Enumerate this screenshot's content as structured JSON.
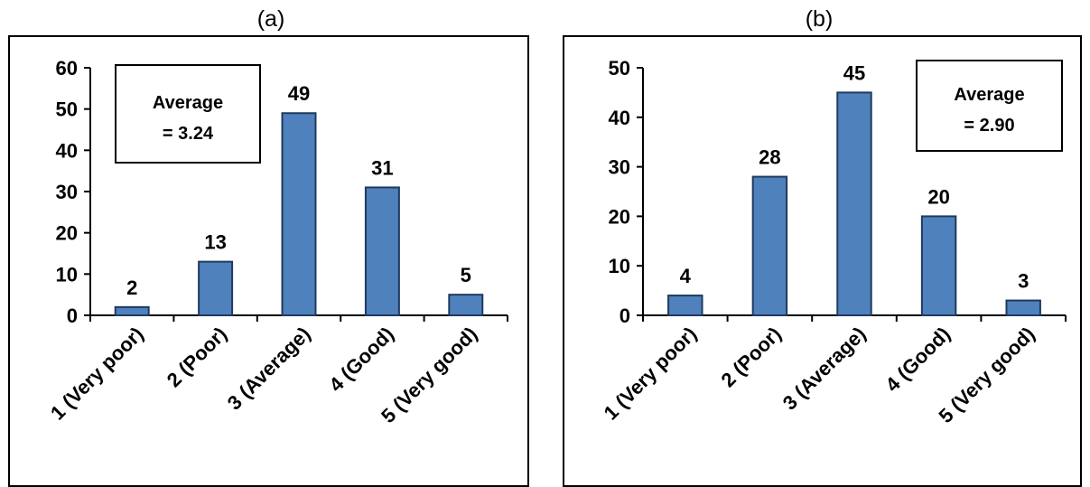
{
  "bar_color": "#4F81BD",
  "bar_edge_color": "#1F3A5F",
  "chart_data": [
    {
      "type": "bar",
      "panel_label": "(a)",
      "title": "",
      "xlabel": "",
      "ylabel": "",
      "categories": [
        "1 (Very poor)",
        "2 (Poor)",
        "3 (Average)",
        "4 (Good)",
        "5 (Very good)"
      ],
      "values": [
        2,
        13,
        49,
        31,
        5
      ],
      "data_labels": [
        "2",
        "13",
        "49",
        "31",
        "5"
      ],
      "ylim": [
        0,
        60
      ],
      "yticks": [
        0,
        10,
        20,
        30,
        40,
        50,
        60
      ],
      "grid": false,
      "annotation": [
        "Average",
        "= 3.24"
      ],
      "annotation_position": "top-left"
    },
    {
      "type": "bar",
      "panel_label": "(b)",
      "title": "",
      "xlabel": "",
      "ylabel": "",
      "categories": [
        "1 (Very poor)",
        "2 (Poor)",
        "3 (Average)",
        "4 (Good)",
        "5 (Very good)"
      ],
      "values": [
        4,
        28,
        45,
        20,
        3
      ],
      "data_labels": [
        "4",
        "28",
        "45",
        "20",
        "3"
      ],
      "ylim": [
        0,
        50
      ],
      "yticks": [
        0,
        10,
        20,
        30,
        40,
        50
      ],
      "grid": false,
      "annotation": [
        "Average",
        "= 2.90"
      ],
      "annotation_position": "top-right"
    }
  ]
}
